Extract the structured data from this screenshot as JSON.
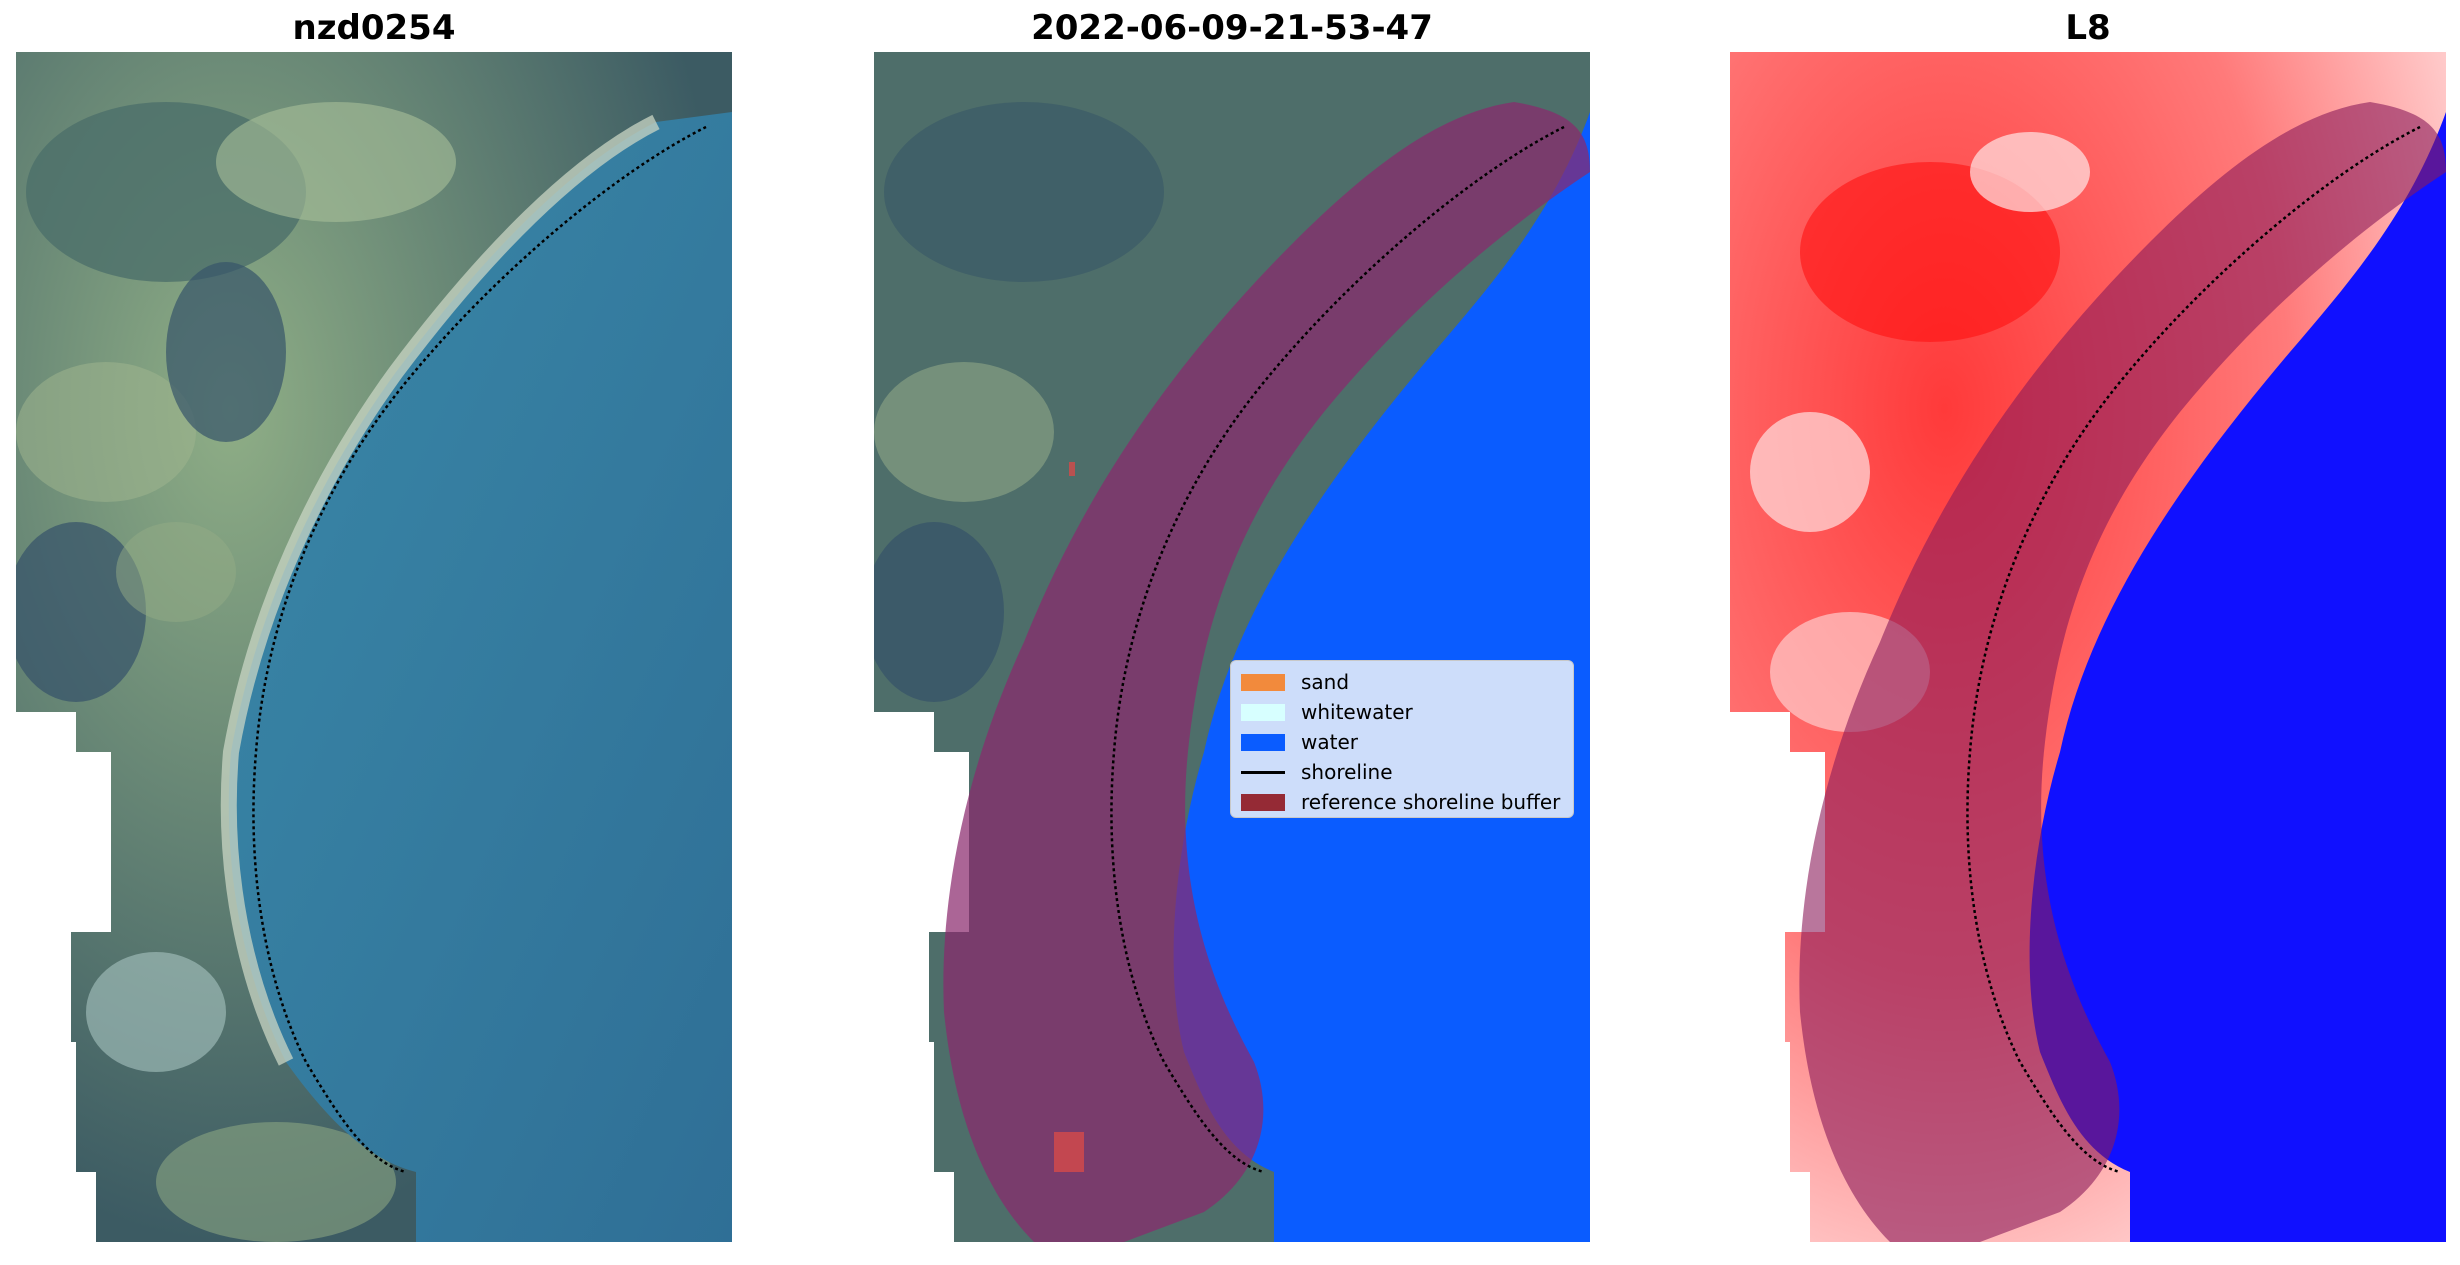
{
  "panels": [
    {
      "title": "nzd0254"
    },
    {
      "title": "2022-06-09-21-53-47"
    },
    {
      "title": "L8"
    }
  ],
  "legend": {
    "items": [
      {
        "label": "sand",
        "color": "#f28a3c"
      },
      {
        "label": "whitewater",
        "color": "#d7ffff"
      },
      {
        "label": "water",
        "color": "#0a5cff"
      },
      {
        "label": "shoreline",
        "color": "#000000"
      },
      {
        "label": "reference shoreline buffer",
        "color": "#952a35"
      }
    ]
  },
  "colors": {
    "rgb_sea": "#3d7fa8",
    "rgb_land": "#5c7a66",
    "buffer_overlay": "#8a3a6e",
    "classified_water": "#0a5cff",
    "index_land": "#ff2020",
    "index_water": "#1010ff"
  }
}
